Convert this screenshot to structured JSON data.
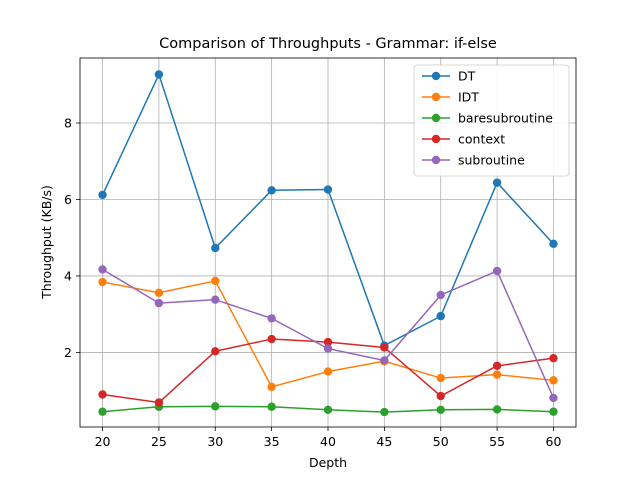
{
  "chart_data": {
    "type": "line",
    "title": "Comparison of Throughputs - Grammar: if-else",
    "xlabel": "Depth",
    "ylabel": "Throughput (KB/s)",
    "x": [
      20,
      25,
      30,
      35,
      40,
      45,
      50,
      55,
      60
    ],
    "xlim": [
      18.0,
      62.0
    ],
    "ylim": [
      0.05,
      9.7
    ],
    "xticks": [
      20,
      25,
      30,
      35,
      40,
      45,
      50,
      55,
      60
    ],
    "yticks": [
      2,
      4,
      6,
      8
    ],
    "grid": true,
    "legend_position": "upper-right",
    "series": [
      {
        "name": "DT",
        "color": "#1f77b4",
        "values": [
          6.12,
          9.27,
          4.73,
          6.24,
          6.26,
          2.18,
          2.95,
          6.44,
          4.84
        ]
      },
      {
        "name": "IDT",
        "color": "#ff7f0e",
        "values": [
          3.84,
          3.56,
          3.87,
          1.1,
          1.5,
          1.77,
          1.33,
          1.42,
          1.27
        ]
      },
      {
        "name": "baresubroutine",
        "color": "#2ca02c",
        "values": [
          0.45,
          0.58,
          0.59,
          0.58,
          0.5,
          0.44,
          0.5,
          0.51,
          0.45
        ]
      },
      {
        "name": "context",
        "color": "#d62728",
        "values": [
          0.9,
          0.69,
          2.03,
          2.35,
          2.27,
          2.13,
          0.86,
          1.65,
          1.85
        ]
      },
      {
        "name": "subroutine",
        "color": "#9467bd",
        "values": [
          4.17,
          3.29,
          3.38,
          2.89,
          2.1,
          1.79,
          3.5,
          4.13,
          0.81
        ]
      }
    ]
  }
}
